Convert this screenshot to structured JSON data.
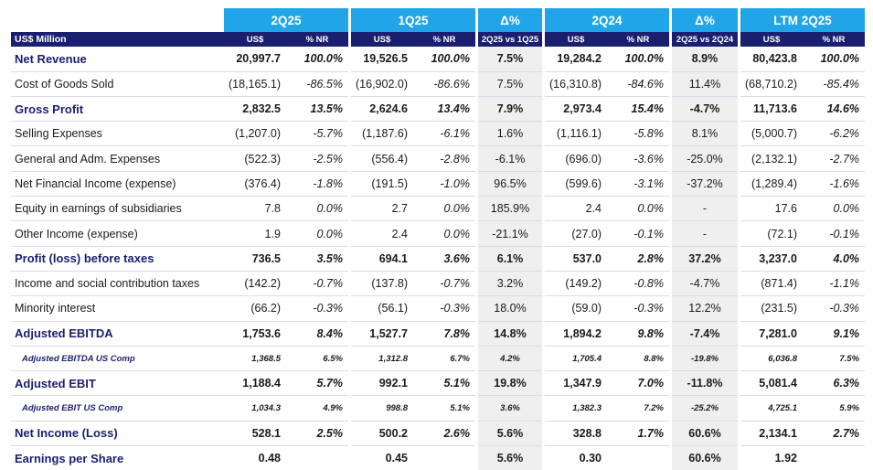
{
  "header": {
    "groups": [
      "2Q25",
      "1Q25",
      "Δ%",
      "2Q24",
      "Δ%",
      "LTM 2Q25"
    ],
    "label_col": "US$ Million",
    "sub": [
      "US$",
      "% NR",
      "US$",
      "% NR",
      "2Q25 vs 1Q25",
      "US$",
      "% NR",
      "2Q25 vs 2Q24",
      "US$",
      "% NR"
    ]
  },
  "rows": [
    {
      "label": "Net Revenue",
      "v": [
        "20,997.7",
        "100.0%",
        "19,526.5",
        "100.0%",
        "7.5%",
        "19,284.2",
        "100.0%",
        "8.9%",
        "80,423.8",
        "100.0%"
      ]
    },
    {
      "label": "Cost of Goods Sold",
      "v": [
        "(18,165.1)",
        "-86.5%",
        "(16,902.0)",
        "-86.6%",
        "7.5%",
        "(16,310.8)",
        "-84.6%",
        "11.4%",
        "(68,710.2)",
        "-85.4%"
      ]
    },
    {
      "label": "Gross Profit",
      "v": [
        "2,832.5",
        "13.5%",
        "2,624.6",
        "13.4%",
        "7.9%",
        "2,973.4",
        "15.4%",
        "-4.7%",
        "11,713.6",
        "14.6%"
      ]
    },
    {
      "label": "Selling Expenses",
      "v": [
        "(1,207.0)",
        "-5.7%",
        "(1,187.6)",
        "-6.1%",
        "1.6%",
        "(1,116.1)",
        "-5.8%",
        "8.1%",
        "(5,000.7)",
        "-6.2%"
      ]
    },
    {
      "label": "General and Adm. Expenses",
      "v": [
        "(522.3)",
        "-2.5%",
        "(556.4)",
        "-2.8%",
        "-6.1%",
        "(696.0)",
        "-3.6%",
        "-25.0%",
        "(2,132.1)",
        "-2.7%"
      ]
    },
    {
      "label": "Net Financial Income (expense)",
      "v": [
        "(376.4)",
        "-1.8%",
        "(191.5)",
        "-1.0%",
        "96.5%",
        "(599.6)",
        "-3.1%",
        "-37.2%",
        "(1,289.4)",
        "-1.6%"
      ]
    },
    {
      "label": "Equity in earnings of subsidiaries",
      "v": [
        "7.8",
        "0.0%",
        "2.7",
        "0.0%",
        "185.9%",
        "2.4",
        "0.0%",
        "-",
        "17.6",
        "0.0%"
      ]
    },
    {
      "label": "Other Income (expense)",
      "v": [
        "1.9",
        "0.0%",
        "2.4",
        "0.0%",
        "-21.1%",
        "(27.0)",
        "-0.1%",
        "-",
        "(72.1)",
        "-0.1%"
      ]
    },
    {
      "label": "Profit (loss) before taxes",
      "v": [
        "736.5",
        "3.5%",
        "694.1",
        "3.6%",
        "6.1%",
        "537.0",
        "2.8%",
        "37.2%",
        "3,237.0",
        "4.0%"
      ]
    },
    {
      "label": "Income and social contribution taxes",
      "v": [
        "(142.2)",
        "-0.7%",
        "(137.8)",
        "-0.7%",
        "3.2%",
        "(149.2)",
        "-0.8%",
        "-4.7%",
        "(871.4)",
        "-1.1%"
      ]
    },
    {
      "label": "Minority interest",
      "v": [
        "(66.2)",
        "-0.3%",
        "(56.1)",
        "-0.3%",
        "18.0%",
        "(59.0)",
        "-0.3%",
        "12.2%",
        "(231.5)",
        "-0.3%"
      ]
    },
    {
      "label": "Adjusted EBITDA",
      "v": [
        "1,753.6",
        "8.4%",
        "1,527.7",
        "7.8%",
        "14.8%",
        "1,894.2",
        "9.8%",
        "-7.4%",
        "7,281.0",
        "9.1%"
      ]
    },
    {
      "label": "Adjusted EBITDA US Comp",
      "v": [
        "1,368.5",
        "6.5%",
        "1,312.8",
        "6.7%",
        "4.2%",
        "1,705.4",
        "8.8%",
        "-19.8%",
        "6,036.8",
        "7.5%"
      ]
    },
    {
      "label": "Adjusted EBIT",
      "v": [
        "1,188.4",
        "5.7%",
        "992.1",
        "5.1%",
        "19.8%",
        "1,347.9",
        "7.0%",
        "-11.8%",
        "5,081.4",
        "6.3%"
      ]
    },
    {
      "label": "Adjusted EBIT US Comp",
      "v": [
        "1,034.3",
        "4.9%",
        "998.8",
        "5.1%",
        "3.6%",
        "1,382.3",
        "7.2%",
        "-25.2%",
        "4,725.1",
        "5.9%"
      ]
    },
    {
      "label": "Net Income (Loss)",
      "v": [
        "528.1",
        "2.5%",
        "500.2",
        "2.6%",
        "5.6%",
        "328.8",
        "1.7%",
        "60.6%",
        "2,134.1",
        "2.7%"
      ]
    },
    {
      "label": "Earnings per Share",
      "v": [
        "0.48",
        "",
        "0.45",
        "",
        "5.6%",
        "0.30",
        "",
        "60.6%",
        "1.92",
        ""
      ]
    }
  ]
}
